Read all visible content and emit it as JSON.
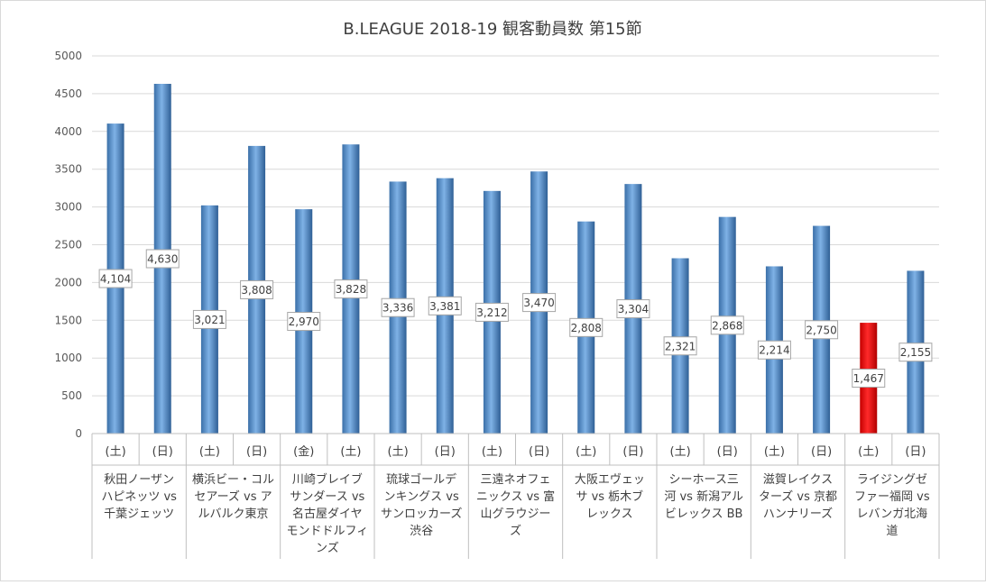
{
  "chart_data": {
    "type": "bar",
    "title": "B.LEAGUE 2018-19 観客動員数 第15節",
    "ylim": [
      0,
      5000
    ],
    "yticks": [
      0,
      500,
      1000,
      1500,
      2000,
      2500,
      3000,
      3500,
      4000,
      4500,
      5000
    ],
    "grid": true,
    "colors": {
      "bar": "#4f8fd0",
      "highlight": "#ee0000",
      "grid": "#d9d9d9"
    },
    "days": [
      "(土)",
      "(日)",
      "(土)",
      "(日)",
      "(金)",
      "(土)",
      "(土)",
      "(日)",
      "(土)",
      "(日)",
      "(土)",
      "(日)",
      "(土)",
      "(日)",
      "(土)",
      "(日)",
      "(土)",
      "(日)"
    ],
    "values": [
      4104,
      4630,
      3021,
      3808,
      2970,
      3828,
      3336,
      3381,
      3212,
      3470,
      2808,
      3304,
      2321,
      2868,
      2214,
      2750,
      1467,
      2155
    ],
    "data_labels": [
      "4,104",
      "4,630",
      "3,021",
      "3,808",
      "2,970",
      "3,828",
      "3,336",
      "3,381",
      "3,212",
      "3,470",
      "2,808",
      "3,304",
      "2,321",
      "2,868",
      "2,214",
      "2,750",
      "1,467",
      "2,155"
    ],
    "highlight_index": 16,
    "groups": [
      {
        "lines": [
          "秋田ノーザン",
          "ハピネッツ vs",
          "千葉ジェッツ"
        ]
      },
      {
        "lines": [
          "横浜ビー・コル",
          "セアーズ vs ア",
          "ルバルク東京"
        ]
      },
      {
        "lines": [
          "川崎ブレイブ",
          "サンダース vs",
          "名古屋ダイヤ",
          "モンドドルフィ",
          "ンズ"
        ]
      },
      {
        "lines": [
          "琉球ゴールデ",
          "ンキングス vs",
          "サンロッカーズ",
          "渋谷"
        ]
      },
      {
        "lines": [
          "三遠ネオフェ",
          "ニックス vs 富",
          "山グラウジー",
          "ズ"
        ]
      },
      {
        "lines": [
          "大阪エヴェッ",
          "サ vs 栃木ブ",
          "レックス"
        ]
      },
      {
        "lines": [
          "シーホース三",
          "河 vs 新潟アル",
          "ビレックス BB"
        ]
      },
      {
        "lines": [
          "滋賀レイクス",
          "ターズ vs 京都",
          "ハンナリーズ"
        ]
      },
      {
        "lines": [
          "ライジングゼ",
          "ファー福岡 vs",
          "レバンガ北海",
          "道"
        ]
      }
    ]
  }
}
